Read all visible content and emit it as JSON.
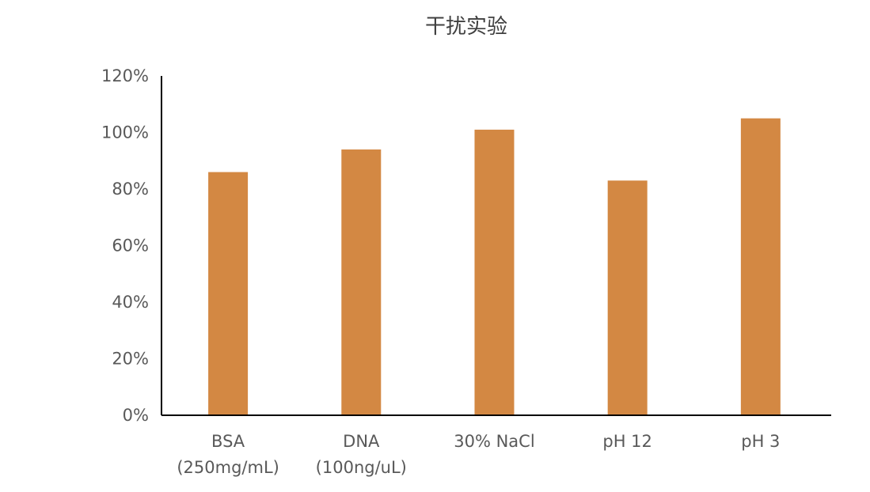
{
  "chart_data": {
    "type": "bar",
    "title": "干扰实验",
    "xlabel": "",
    "ylabel": "",
    "categories": [
      [
        "BSA",
        "(250mg/mL)"
      ],
      [
        "DNA",
        "(100ng/uL)"
      ],
      [
        "30% NaCl"
      ],
      [
        "pH 12"
      ],
      [
        "pH 3"
      ]
    ],
    "series": [
      {
        "values": [
          0.86,
          0.94,
          1.01,
          0.83,
          1.05
        ],
        "color": "#D38843"
      }
    ],
    "ylim": [
      0,
      1.2
    ],
    "yticks": [
      0,
      0.2,
      0.4,
      0.6,
      0.8,
      1.0,
      1.2
    ],
    "ytick_labels": [
      "0%",
      "20%",
      "40%",
      "60%",
      "80%",
      "100%",
      "120%"
    ],
    "y_format": "percent",
    "grid": false,
    "legend": "none",
    "axis_color": "#000000"
  }
}
